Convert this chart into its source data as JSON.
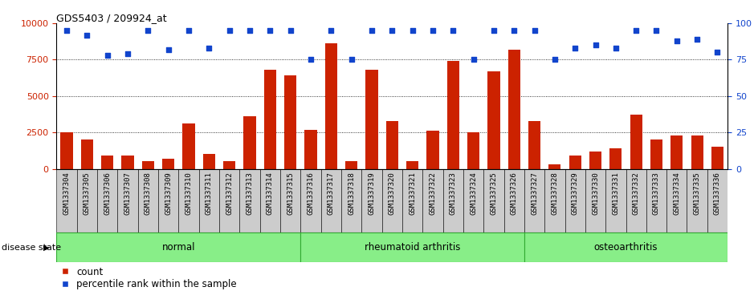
{
  "title": "GDS5403 / 209924_at",
  "samples": [
    "GSM1337304",
    "GSM1337305",
    "GSM1337306",
    "GSM1337307",
    "GSM1337308",
    "GSM1337309",
    "GSM1337310",
    "GSM1337311",
    "GSM1337312",
    "GSM1337313",
    "GSM1337314",
    "GSM1337315",
    "GSM1337316",
    "GSM1337317",
    "GSM1337318",
    "GSM1337319",
    "GSM1337320",
    "GSM1337321",
    "GSM1337322",
    "GSM1337323",
    "GSM1337324",
    "GSM1337325",
    "GSM1337326",
    "GSM1337327",
    "GSM1337328",
    "GSM1337329",
    "GSM1337330",
    "GSM1337331",
    "GSM1337332",
    "GSM1337333",
    "GSM1337334",
    "GSM1337335",
    "GSM1337336"
  ],
  "counts": [
    2500,
    2000,
    900,
    900,
    550,
    700,
    3100,
    1000,
    500,
    3600,
    6800,
    6400,
    2700,
    8600,
    500,
    6800,
    3300,
    500,
    2600,
    7400,
    2500,
    6700,
    8200,
    3300,
    300,
    900,
    1200,
    1400,
    3700,
    2000,
    2300,
    2300,
    1500
  ],
  "percentile": [
    95,
    92,
    78,
    79,
    95,
    82,
    95,
    83,
    95,
    95,
    95,
    95,
    75,
    95,
    75,
    95,
    95,
    95,
    95,
    95,
    75,
    95,
    95,
    95,
    75,
    83,
    85,
    83,
    95,
    95,
    88,
    89,
    80
  ],
  "groups": [
    {
      "label": "normal",
      "start": 0,
      "end": 12
    },
    {
      "label": "rheumatoid arthritis",
      "start": 12,
      "end": 23
    },
    {
      "label": "osteoarthritis",
      "start": 23,
      "end": 33
    }
  ],
  "bar_color": "#cc2200",
  "dot_color": "#1144cc",
  "group_color": "#88ee88",
  "group_border_color": "#33aa33",
  "ylim_left": [
    0,
    10000
  ],
  "ylim_right": [
    0,
    100
  ],
  "yticks_left": [
    0,
    2500,
    5000,
    7500,
    10000
  ],
  "yticks_right": [
    0,
    25,
    50,
    75,
    100
  ],
  "disease_state_label": "disease state",
  "legend_count": "count",
  "legend_percentile": "percentile rank within the sample",
  "bg_color": "#ffffff",
  "tick_bg_color": "#cccccc",
  "grid_yticks": [
    2500,
    5000,
    7500
  ]
}
